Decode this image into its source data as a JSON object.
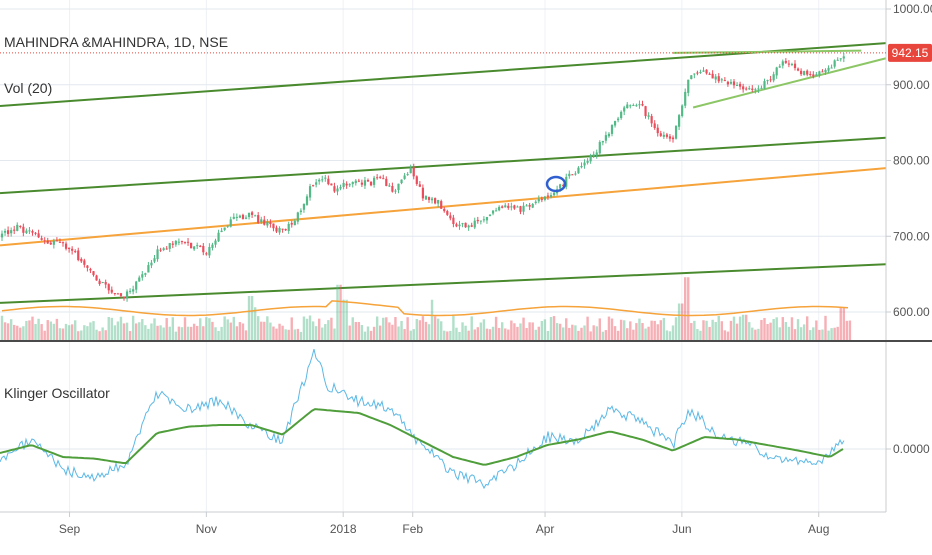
{
  "chart_data": [
    {
      "type": "candlestick",
      "title": "MAHINDRA &MAHINDRA, 1D, NSE",
      "indicator_label": "Vol (20)",
      "last_price": "942.15",
      "y_ticks": [
        "1000.00",
        "900.00",
        "800.00",
        "700.00",
        "600.00"
      ],
      "ylim": [
        570,
        1005
      ],
      "x_ticks": [
        "Sep",
        "Nov",
        "2018",
        "Feb",
        "Apr",
        "Jun",
        "Aug"
      ],
      "price_path": [
        [
          "2017-08-01",
          700
        ],
        [
          "2017-08-08",
          712
        ],
        [
          "2017-08-14",
          705
        ],
        [
          "2017-08-22",
          690
        ],
        [
          "2017-08-29",
          690
        ],
        [
          "2017-09-05",
          672
        ],
        [
          "2017-09-11",
          650
        ],
        [
          "2017-09-18",
          630
        ],
        [
          "2017-09-25",
          620
        ],
        [
          "2017-10-03",
          645
        ],
        [
          "2017-10-10",
          680
        ],
        [
          "2017-10-17",
          690
        ],
        [
          "2017-10-24",
          690
        ],
        [
          "2017-11-01",
          680
        ],
        [
          "2017-11-08",
          710
        ],
        [
          "2017-11-14",
          725
        ],
        [
          "2017-11-21",
          728
        ],
        [
          "2017-11-28",
          715
        ],
        [
          "2017-12-05",
          705
        ],
        [
          "2017-12-12",
          730
        ],
        [
          "2017-12-18",
          770
        ],
        [
          "2017-12-22",
          780
        ],
        [
          "2017-12-28",
          760
        ],
        [
          "2018-01-04",
          770
        ],
        [
          "2018-01-11",
          770
        ],
        [
          "2018-01-18",
          775
        ],
        [
          "2018-01-24",
          760
        ],
        [
          "2018-01-31",
          790
        ],
        [
          "2018-02-06",
          750
        ],
        [
          "2018-02-12",
          745
        ],
        [
          "2018-02-19",
          715
        ],
        [
          "2018-02-26",
          715
        ],
        [
          "2018-03-05",
          725
        ],
        [
          "2018-03-12",
          740
        ],
        [
          "2018-03-19",
          735
        ],
        [
          "2018-03-26",
          740
        ],
        [
          "2018-04-02",
          755
        ],
        [
          "2018-04-09",
          770
        ],
        [
          "2018-04-16",
          790
        ],
        [
          "2018-04-23",
          810
        ],
        [
          "2018-04-30",
          840
        ],
        [
          "2018-05-07",
          875
        ],
        [
          "2018-05-14",
          870
        ],
        [
          "2018-05-21",
          840
        ],
        [
          "2018-05-28",
          825
        ],
        [
          "2018-06-04",
          910
        ],
        [
          "2018-06-11",
          915
        ],
        [
          "2018-06-18",
          905
        ],
        [
          "2018-06-25",
          900
        ],
        [
          "2018-07-02",
          890
        ],
        [
          "2018-07-09",
          905
        ],
        [
          "2018-07-16",
          930
        ],
        [
          "2018-07-23",
          918
        ],
        [
          "2018-07-30",
          910
        ],
        [
          "2018-08-06",
          925
        ],
        [
          "2018-08-13",
          942
        ]
      ],
      "volume_ma_level": 0.4,
      "trend_lines": [
        {
          "color": "#4a8a2e",
          "from": [
            "2017-08-01",
            872
          ],
          "to": [
            "2018-08-31",
            955
          ]
        },
        {
          "color": "#4a8a2e",
          "from": [
            "2017-08-01",
            757
          ],
          "to": [
            "2018-08-31",
            830
          ]
        },
        {
          "color": "#f5a33a",
          "from": [
            "2017-08-01",
            688
          ],
          "to": [
            "2018-08-31",
            790
          ]
        },
        {
          "color": "#4a8a2e",
          "from": [
            "2017-08-01",
            612
          ],
          "to": [
            "2018-08-31",
            663
          ]
        },
        {
          "color": "#8cc665",
          "from": [
            "2018-06-06",
            870
          ],
          "to": [
            "2018-08-31",
            935
          ]
        },
        {
          "color": "#8cc665",
          "from": [
            "2018-05-28",
            942
          ],
          "to": [
            "2018-08-20",
            945
          ]
        }
      ],
      "colors": {
        "up": "#53b987",
        "down": "#eb4d5c",
        "price_line": "#e8463c",
        "vol_ma": "#f5a33a"
      }
    },
    {
      "type": "line",
      "title": "Klinger Oscillator",
      "y_ticks": [
        "0.0000"
      ],
      "series": [
        {
          "color": "#5cb8e6",
          "values": [
            [
              "2017-08-01",
              -0.12
            ],
            [
              "2017-08-15",
              0.1
            ],
            [
              "2017-08-29",
              -0.25
            ],
            [
              "2017-09-12",
              -0.35
            ],
            [
              "2017-09-26",
              -0.2
            ],
            [
              "2017-10-10",
              0.7
            ],
            [
              "2017-10-24",
              0.5
            ],
            [
              "2017-11-07",
              0.6
            ],
            [
              "2017-11-21",
              0.3
            ],
            [
              "2017-12-05",
              0.1
            ],
            [
              "2017-12-19",
              1.2
            ],
            [
              "2017-12-25",
              0.8
            ],
            [
              "2018-01-08",
              0.6
            ],
            [
              "2018-01-22",
              0.5
            ],
            [
              "2018-02-05",
              0.05
            ],
            [
              "2018-02-19",
              -0.3
            ],
            [
              "2018-03-05",
              -0.45
            ],
            [
              "2018-03-19",
              -0.2
            ],
            [
              "2018-04-02",
              0.15
            ],
            [
              "2018-04-16",
              0.1
            ],
            [
              "2018-04-30",
              0.5
            ],
            [
              "2018-05-14",
              0.35
            ],
            [
              "2018-05-28",
              0.05
            ],
            [
              "2018-06-04",
              0.5
            ],
            [
              "2018-06-18",
              0.15
            ],
            [
              "2018-07-02",
              0.05
            ],
            [
              "2018-07-16",
              -0.15
            ],
            [
              "2018-07-30",
              -0.2
            ],
            [
              "2018-08-13",
              0.15
            ]
          ]
        },
        {
          "color": "#4f9e3b",
          "values": [
            [
              "2017-08-01",
              -0.05
            ],
            [
              "2017-08-15",
              0.05
            ],
            [
              "2017-08-29",
              -0.1
            ],
            [
              "2017-09-12",
              -0.12
            ],
            [
              "2017-09-26",
              -0.18
            ],
            [
              "2017-10-10",
              0.2
            ],
            [
              "2017-10-24",
              0.28
            ],
            [
              "2017-11-07",
              0.3
            ],
            [
              "2017-11-21",
              0.3
            ],
            [
              "2017-12-05",
              0.18
            ],
            [
              "2017-12-19",
              0.5
            ],
            [
              "2018-01-08",
              0.45
            ],
            [
              "2018-01-22",
              0.3
            ],
            [
              "2018-02-05",
              0.1
            ],
            [
              "2018-02-19",
              -0.1
            ],
            [
              "2018-03-05",
              -0.2
            ],
            [
              "2018-03-19",
              -0.1
            ],
            [
              "2018-04-02",
              0.05
            ],
            [
              "2018-04-16",
              0.12
            ],
            [
              "2018-04-30",
              0.22
            ],
            [
              "2018-05-14",
              0.12
            ],
            [
              "2018-05-28",
              -0.02
            ],
            [
              "2018-06-11",
              0.15
            ],
            [
              "2018-06-25",
              0.12
            ],
            [
              "2018-07-09",
              0.05
            ],
            [
              "2018-07-23",
              -0.02
            ],
            [
              "2018-08-06",
              -0.1
            ],
            [
              "2018-08-13",
              0.02
            ]
          ]
        }
      ]
    }
  ]
}
